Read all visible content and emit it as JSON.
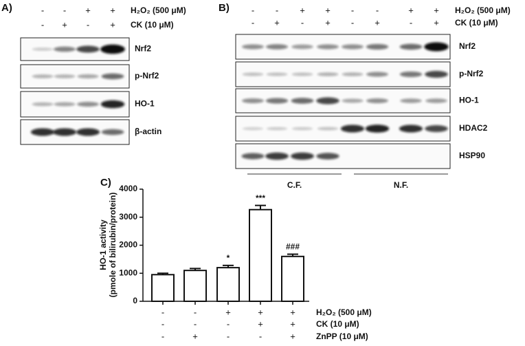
{
  "panel_a": {
    "label": "A)",
    "treatments": [
      {
        "name": "H₂O₂ (500 μM)",
        "signs": [
          "-",
          "-",
          "+",
          "+"
        ]
      },
      {
        "name": "CK (10 μM)",
        "signs": [
          "-",
          "+",
          "-",
          "+"
        ]
      }
    ],
    "blots": [
      "Nrf2",
      "p-Nrf2",
      "HO-1",
      "β-actin"
    ]
  },
  "panel_b": {
    "label": "B)",
    "treatments": [
      {
        "name": "H₂O₂ (500 μM)",
        "signs": [
          "-",
          "-",
          "+",
          "+",
          "-",
          "-",
          "+",
          "+"
        ]
      },
      {
        "name": "CK (10 μM)",
        "signs": [
          "-",
          "+",
          "-",
          "+",
          "-",
          "+",
          "-",
          "+"
        ]
      }
    ],
    "blots": [
      "Nrf2",
      "p-Nrf2",
      "HO-1",
      "HDAC2",
      "HSP90"
    ],
    "fractions": [
      "C.F.",
      "N.F."
    ]
  },
  "chart_data": {
    "type": "bar",
    "label": "C)",
    "y_label": [
      "HO-1 activity",
      "(pmole of bilirubin/protein)"
    ],
    "ylim": [
      0,
      4000
    ],
    "yticks": [
      0,
      1000,
      2000,
      3000,
      4000
    ],
    "values": [
      950,
      1100,
      1200,
      3270,
      1600
    ],
    "errors": [
      50,
      70,
      80,
      150,
      80
    ],
    "annotations": [
      null,
      null,
      "*",
      "***",
      "###"
    ],
    "color": "#ffffff",
    "treatments": [
      {
        "name": "H₂O₂ (500 μM)",
        "signs": [
          "-",
          "-",
          "+",
          "+",
          "+"
        ]
      },
      {
        "name": "CK (10 μM)",
        "signs": [
          "-",
          "-",
          "-",
          "+",
          "+"
        ]
      },
      {
        "name": "ZnPP (10 μM)",
        "signs": [
          "-",
          "+",
          "-",
          "-",
          "+"
        ]
      }
    ]
  }
}
